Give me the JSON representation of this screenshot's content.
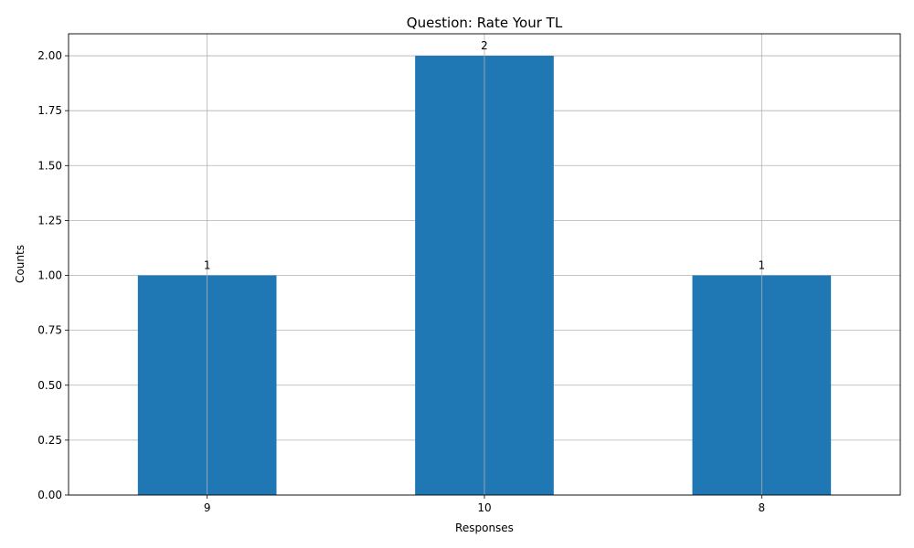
{
  "chart_data": {
    "type": "bar",
    "title": "Question: Rate Your TL",
    "xlabel": "Responses",
    "ylabel": "Counts",
    "categories": [
      "9",
      "10",
      "8"
    ],
    "values": [
      1,
      2,
      1
    ],
    "data_labels": [
      "1",
      "2",
      "1"
    ],
    "ylim": [
      0,
      2.1
    ],
    "yticks": [
      0,
      0.25,
      0.5,
      0.75,
      1.0,
      1.25,
      1.5,
      1.75,
      2.0
    ],
    "ytick_labels": [
      "0.00",
      "0.25",
      "0.50",
      "0.75",
      "1.00",
      "1.25",
      "1.50",
      "1.75",
      "2.00"
    ],
    "grid": true,
    "bar_color": "#1f77b4",
    "grid_color": "#b0b0b0"
  }
}
